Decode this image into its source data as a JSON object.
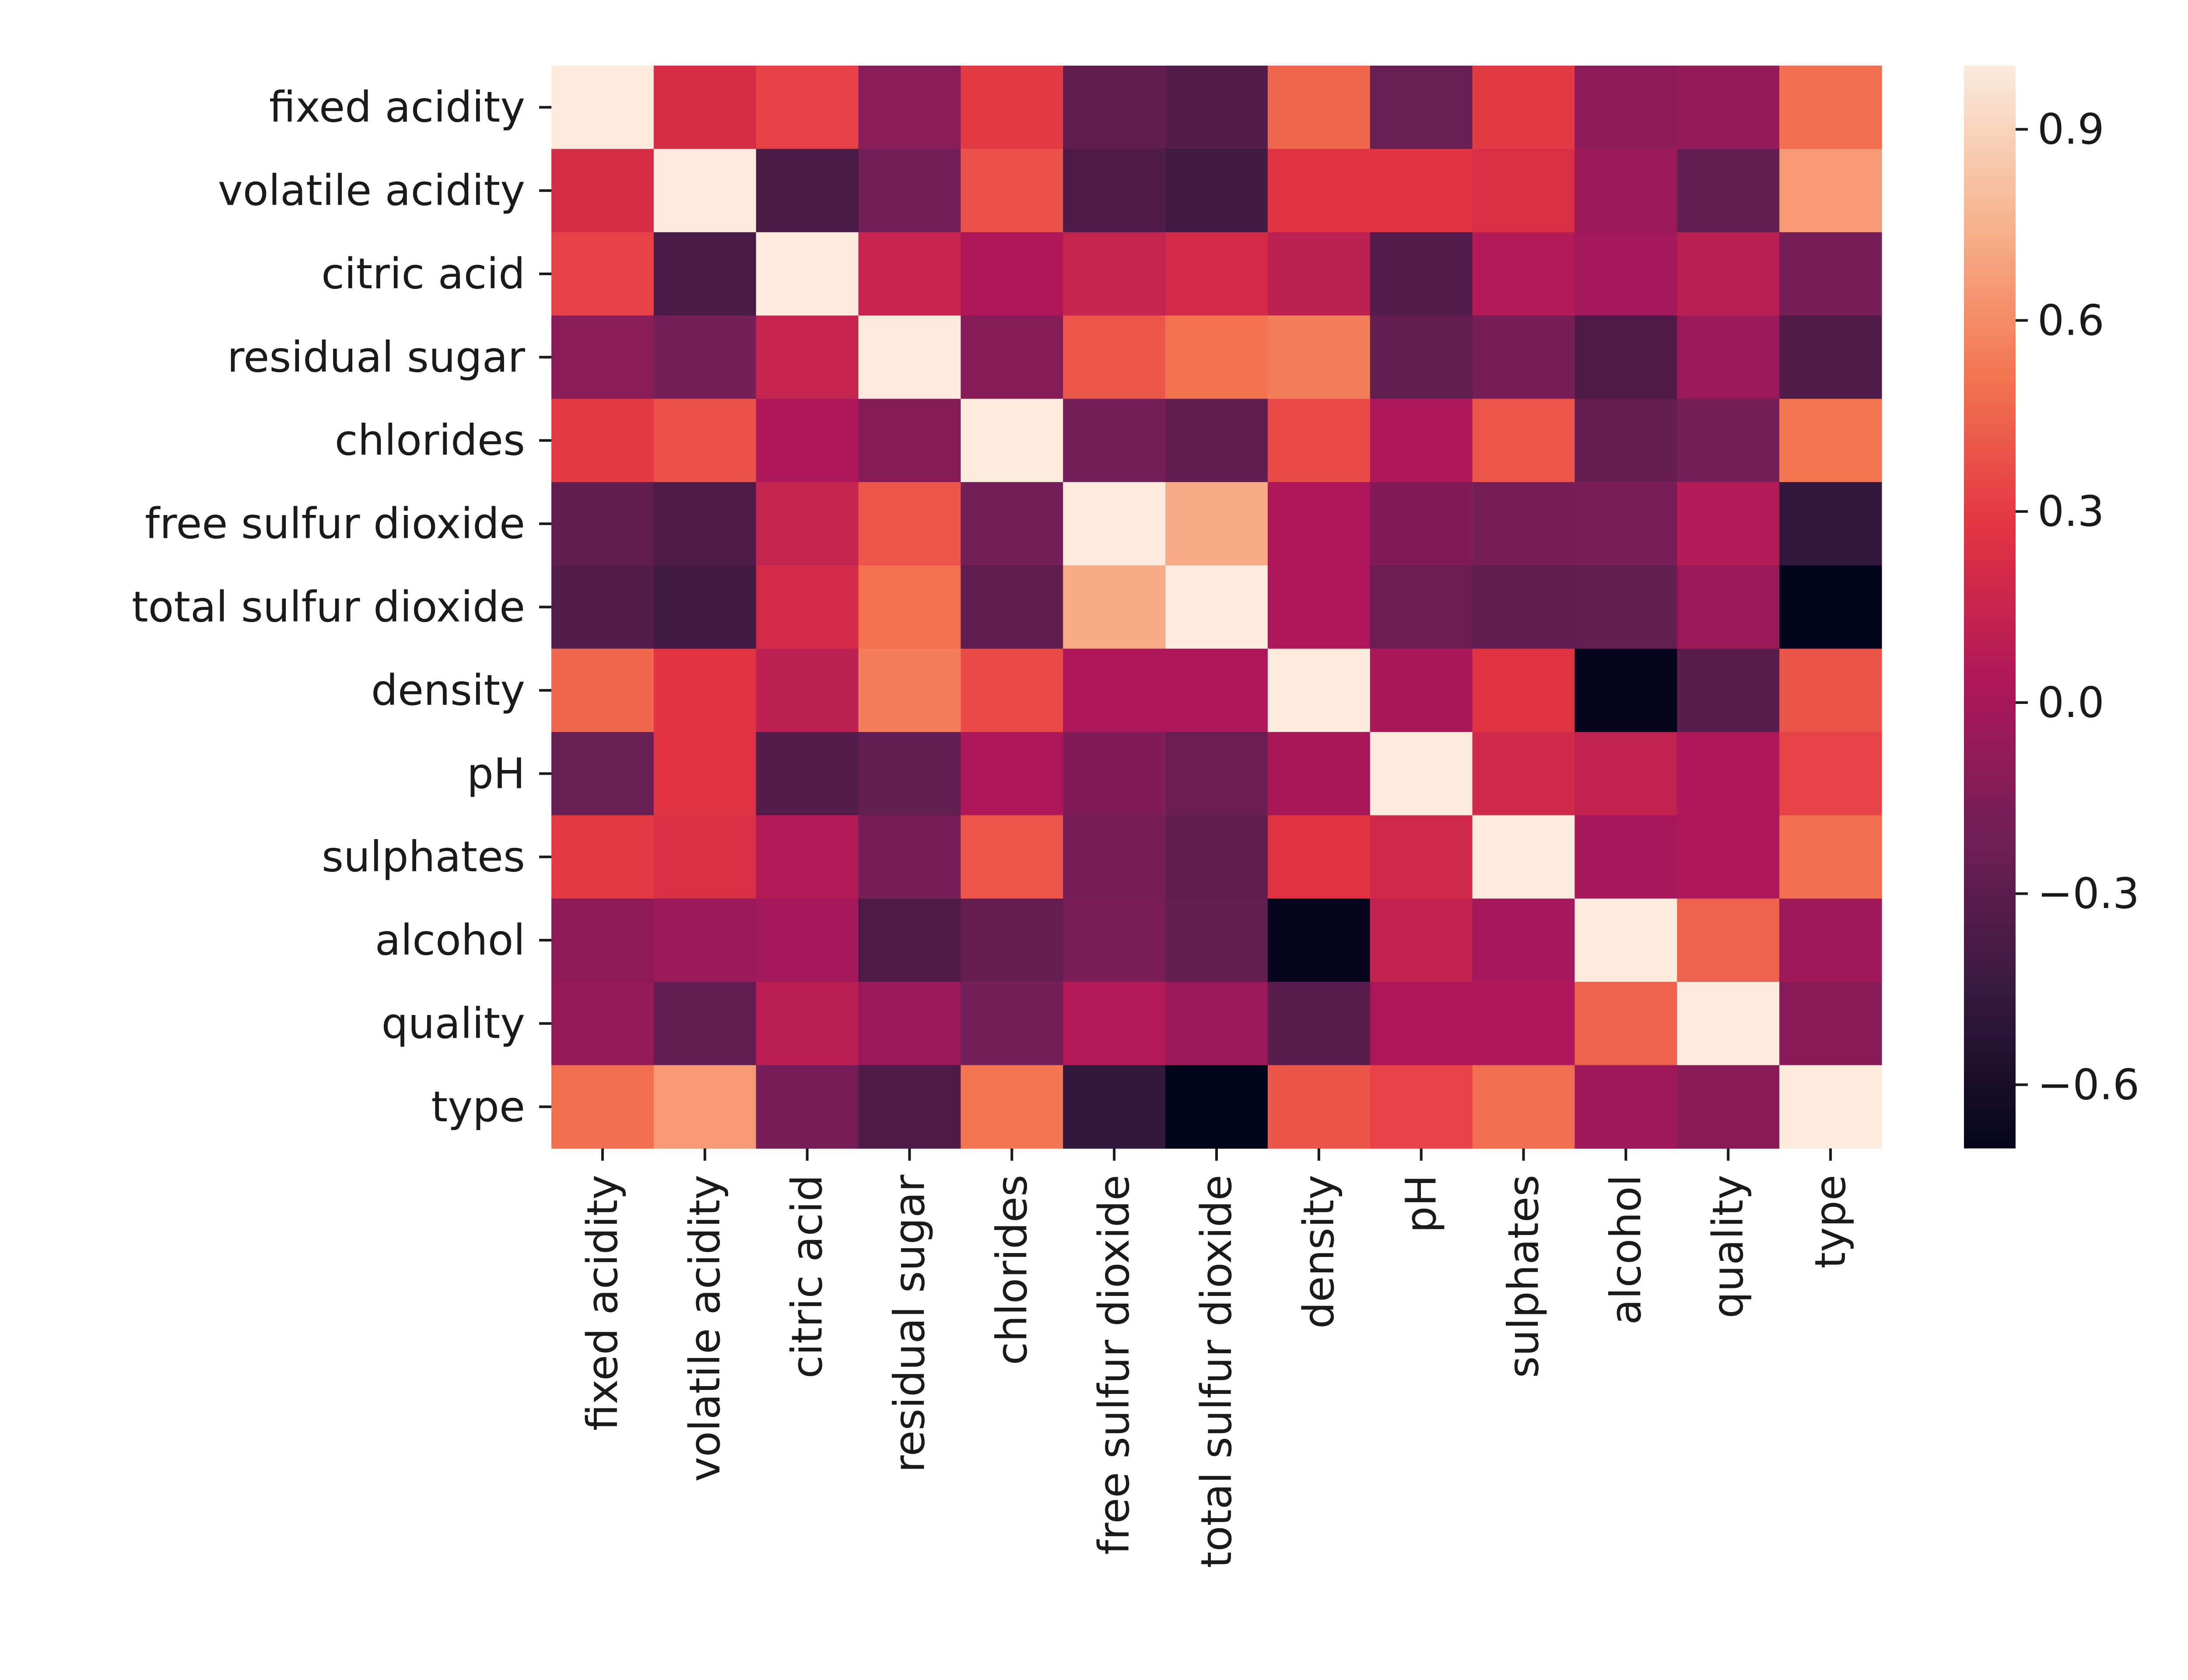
{
  "chart_data": {
    "type": "heatmap",
    "title": "",
    "xlabel": "",
    "ylabel": "",
    "rows": [
      "fixed acidity",
      "volatile acidity",
      "citric acid",
      "residual sugar",
      "chlorides",
      "free sulfur dioxide",
      "total sulfur dioxide",
      "density",
      "pH",
      "sulphates",
      "alcohol",
      "quality",
      "type"
    ],
    "columns": [
      "fixed acidity",
      "volatile acidity",
      "citric acid",
      "residual sugar",
      "chlorides",
      "free sulfur dioxide",
      "total sulfur dioxide",
      "density",
      "pH",
      "sulphates",
      "alcohol",
      "quality",
      "type"
    ],
    "values": [
      [
        1.0,
        0.22,
        0.32,
        -0.11,
        0.3,
        -0.28,
        -0.33,
        0.46,
        -0.25,
        0.3,
        -0.1,
        -0.08,
        0.49
      ],
      [
        0.22,
        1.0,
        -0.38,
        -0.2,
        0.38,
        -0.35,
        -0.41,
        0.27,
        0.26,
        0.23,
        -0.04,
        -0.27,
        0.65
      ],
      [
        0.32,
        -0.38,
        1.0,
        0.14,
        0.04,
        0.13,
        0.2,
        0.1,
        -0.33,
        0.06,
        -0.01,
        0.09,
        -0.19
      ],
      [
        -0.11,
        -0.2,
        0.14,
        1.0,
        -0.13,
        0.4,
        0.5,
        0.55,
        -0.27,
        -0.19,
        -0.36,
        -0.04,
        -0.35
      ],
      [
        0.3,
        0.38,
        0.04,
        -0.13,
        1.0,
        -0.2,
        -0.28,
        0.36,
        0.04,
        0.4,
        -0.26,
        -0.2,
        0.51
      ],
      [
        -0.28,
        -0.35,
        0.13,
        0.4,
        -0.2,
        1.0,
        0.72,
        0.03,
        -0.15,
        -0.19,
        -0.18,
        0.06,
        -0.47
      ],
      [
        -0.33,
        -0.41,
        0.2,
        0.5,
        -0.28,
        0.72,
        1.0,
        0.03,
        -0.24,
        -0.28,
        -0.27,
        -0.04,
        -0.7
      ],
      [
        0.46,
        0.27,
        0.1,
        0.55,
        0.36,
        0.03,
        0.03,
        1.0,
        0.01,
        0.26,
        -0.69,
        -0.31,
        0.39
      ],
      [
        -0.25,
        0.26,
        -0.33,
        -0.27,
        0.04,
        -0.15,
        -0.24,
        0.01,
        1.0,
        0.19,
        0.12,
        0.02,
        0.33
      ],
      [
        0.3,
        0.23,
        0.06,
        -0.19,
        0.4,
        -0.19,
        -0.28,
        0.26,
        0.19,
        1.0,
        -0.0,
        0.04,
        0.49
      ],
      [
        -0.1,
        -0.04,
        -0.01,
        -0.36,
        -0.26,
        -0.18,
        -0.27,
        -0.69,
        0.12,
        -0.0,
        1.0,
        0.44,
        -0.03
      ],
      [
        -0.08,
        -0.27,
        0.09,
        -0.04,
        -0.2,
        0.06,
        -0.04,
        -0.31,
        0.02,
        0.04,
        0.44,
        1.0,
        -0.12
      ],
      [
        0.49,
        0.65,
        -0.19,
        -0.35,
        0.51,
        -0.47,
        -0.7,
        0.39,
        0.33,
        0.49,
        -0.03,
        -0.12,
        1.0
      ]
    ],
    "colorbar": {
      "colormap": "rocket",
      "vmin": -0.7,
      "vmax": 1.0,
      "ticks": [
        0.9,
        0.6,
        0.3,
        0.0,
        -0.3,
        -0.6
      ],
      "tick_labels": [
        "0.9",
        "0.6",
        "0.3",
        "0.0",
        "−0.3",
        "−0.6"
      ],
      "stops": [
        "#03051a",
        "#35193e",
        "#701f57",
        "#ad1759",
        "#e13342",
        "#f37651",
        "#f6b48f",
        "#faebdd"
      ]
    }
  }
}
